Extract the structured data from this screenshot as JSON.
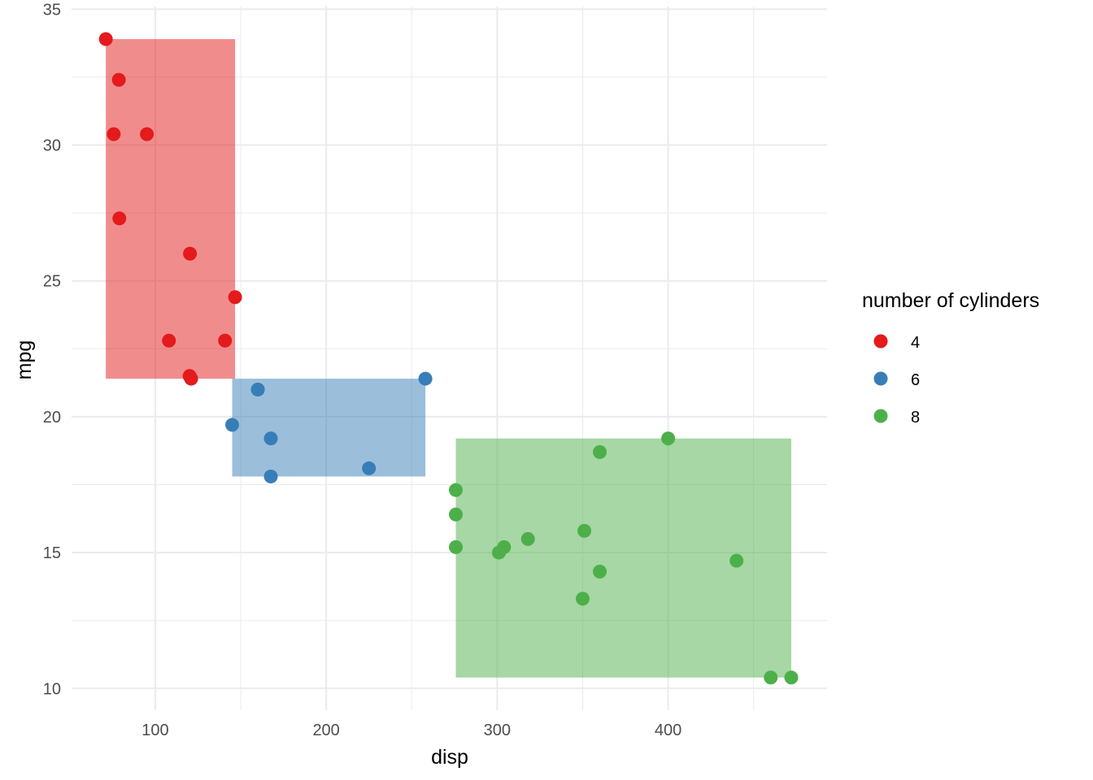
{
  "chart_data": {
    "type": "scatter",
    "title": "",
    "xlabel": "disp",
    "ylabel": "mpg",
    "xlim": [
      51.05,
      492.95
    ],
    "ylim": [
      9.2,
      35.1
    ],
    "x_ticks": [
      100,
      200,
      300,
      400
    ],
    "y_ticks": [
      10,
      15,
      20,
      25,
      30,
      35
    ],
    "x_tick_labels": [
      "100",
      "200",
      "300",
      "400"
    ],
    "y_tick_labels": [
      "10",
      "15",
      "20",
      "25",
      "30",
      "35"
    ],
    "grid": true,
    "legend": {
      "title": "number of cylinders",
      "placement": "right",
      "entries": [
        "4",
        "6",
        "8"
      ]
    },
    "series": [
      {
        "name": "4",
        "color": "#E41A1C",
        "rect": {
          "xmin": 71.1,
          "xmax": 146.7,
          "ymin": 21.4,
          "ymax": 33.9
        },
        "points": [
          [
            108,
            22.8
          ],
          [
            146.7,
            24.4
          ],
          [
            140.8,
            22.8
          ],
          [
            78.7,
            32.4
          ],
          [
            75.7,
            30.4
          ],
          [
            71.1,
            33.9
          ],
          [
            120.1,
            21.5
          ],
          [
            79,
            27.3
          ],
          [
            120.3,
            26
          ],
          [
            95.1,
            30.4
          ],
          [
            121,
            21.4
          ]
        ]
      },
      {
        "name": "6",
        "color": "#377EB8",
        "rect": {
          "xmin": 145,
          "xmax": 258,
          "ymin": 17.8,
          "ymax": 21.4
        },
        "points": [
          [
            160,
            21
          ],
          [
            258,
            21.4
          ],
          [
            225,
            18.1
          ],
          [
            167.6,
            19.2
          ],
          [
            167.6,
            17.8
          ],
          [
            145,
            19.7
          ],
          [
            160,
            21
          ]
        ]
      },
      {
        "name": "8",
        "color": "#4DAF4A",
        "rect": {
          "xmin": 275.8,
          "xmax": 472,
          "ymin": 10.4,
          "ymax": 19.2
        },
        "points": [
          [
            360,
            18.7
          ],
          [
            360,
            14.3
          ],
          [
            275.8,
            16.4
          ],
          [
            275.8,
            17.3
          ],
          [
            275.8,
            15.2
          ],
          [
            472,
            10.4
          ],
          [
            460,
            10.4
          ],
          [
            440,
            14.7
          ],
          [
            318,
            15.5
          ],
          [
            304,
            15.2
          ],
          [
            350,
            13.3
          ],
          [
            400,
            19.2
          ],
          [
            351,
            15.8
          ],
          [
            301,
            15
          ]
        ]
      }
    ]
  }
}
